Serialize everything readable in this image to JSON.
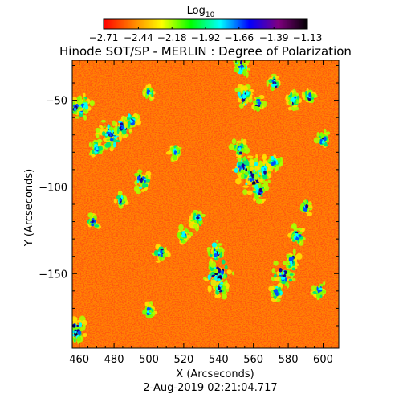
{
  "chart_data": {
    "type": "heatmap",
    "title": "Hinode SOT/SP - MERLIN : Degree of Polarization",
    "subtitle": "2-Aug-2019 02:21:04.717",
    "xlabel": "X (Arcseconds)",
    "ylabel": "Y (Arcseconds)",
    "xlim": [
      456,
      609
    ],
    "ylim": [
      -193,
      -27
    ],
    "x_ticks": [
      {
        "value": 460,
        "label": "460"
      },
      {
        "value": 480,
        "label": "480"
      },
      {
        "value": 500,
        "label": "500"
      },
      {
        "value": 520,
        "label": "520"
      },
      {
        "value": 540,
        "label": "540"
      },
      {
        "value": 560,
        "label": "560"
      },
      {
        "value": 580,
        "label": "580"
      },
      {
        "value": 600,
        "label": "600"
      }
    ],
    "y_ticks": [
      {
        "value": -50,
        "label": "−50"
      },
      {
        "value": -100,
        "label": "−100"
      },
      {
        "value": -150,
        "label": "−150"
      }
    ],
    "colorbar": {
      "title_base": "Log",
      "title_sub": "10",
      "range": [
        -2.71,
        -1.13
      ],
      "ticks": [
        {
          "value": -2.71,
          "label": "−2.71"
        },
        {
          "value": -2.44,
          "label": "−2.44"
        },
        {
          "value": -2.18,
          "label": "−2.18"
        },
        {
          "value": -1.92,
          "label": "−1.92"
        },
        {
          "value": -1.66,
          "label": "−1.66"
        },
        {
          "value": -1.39,
          "label": "−1.39"
        },
        {
          "value": -1.13,
          "label": "−1.13"
        }
      ],
      "colors": [
        "#ff0000",
        "#ff8000",
        "#ffff00",
        "#00ff00",
        "#00ffff",
        "#0000ff",
        "#800080",
        "#000000"
      ]
    },
    "field_background": "#ff5a0a",
    "features": [
      {
        "x": 478,
        "y": -70,
        "size": 2.2,
        "level": 0.95
      },
      {
        "x": 485,
        "y": -66,
        "size": 1.4,
        "level": 0.8
      },
      {
        "x": 490,
        "y": -62,
        "size": 1.2,
        "level": 0.7
      },
      {
        "x": 462,
        "y": -53,
        "size": 1.6,
        "level": 0.8
      },
      {
        "x": 458,
        "y": -55,
        "size": 1.2,
        "level": 0.7
      },
      {
        "x": 496,
        "y": -96,
        "size": 1.6,
        "level": 0.85
      },
      {
        "x": 484,
        "y": -108,
        "size": 1.0,
        "level": 0.75
      },
      {
        "x": 470,
        "y": -78,
        "size": 1.2,
        "level": 0.65
      },
      {
        "x": 560,
        "y": -94,
        "size": 2.6,
        "level": 0.95
      },
      {
        "x": 554,
        "y": -88,
        "size": 1.8,
        "level": 0.8
      },
      {
        "x": 566,
        "y": -90,
        "size": 1.6,
        "level": 0.75
      },
      {
        "x": 563,
        "y": -102,
        "size": 1.5,
        "level": 0.85
      },
      {
        "x": 552,
        "y": -78,
        "size": 1.3,
        "level": 0.6
      },
      {
        "x": 572,
        "y": -85,
        "size": 1.2,
        "level": 0.6
      },
      {
        "x": 555,
        "y": -48,
        "size": 1.5,
        "level": 0.75
      },
      {
        "x": 563,
        "y": -52,
        "size": 1.2,
        "level": 0.7
      },
      {
        "x": 583,
        "y": -50,
        "size": 1.2,
        "level": 0.7
      },
      {
        "x": 592,
        "y": -48,
        "size": 1.0,
        "level": 0.65
      },
      {
        "x": 572,
        "y": -40,
        "size": 1.2,
        "level": 0.65
      },
      {
        "x": 553,
        "y": -31,
        "size": 1.4,
        "level": 0.75
      },
      {
        "x": 540,
        "y": -150,
        "size": 2.4,
        "level": 0.95
      },
      {
        "x": 538,
        "y": -138,
        "size": 1.5,
        "level": 0.75
      },
      {
        "x": 541,
        "y": -158,
        "size": 1.3,
        "level": 0.7
      },
      {
        "x": 577,
        "y": -151,
        "size": 2.0,
        "level": 0.85
      },
      {
        "x": 582,
        "y": -143,
        "size": 1.4,
        "level": 0.75
      },
      {
        "x": 573,
        "y": -160,
        "size": 1.2,
        "level": 0.7
      },
      {
        "x": 585,
        "y": -128,
        "size": 1.3,
        "level": 0.65
      },
      {
        "x": 458,
        "y": -183,
        "size": 1.8,
        "level": 0.85
      },
      {
        "x": 507,
        "y": -138,
        "size": 1.2,
        "level": 0.65
      },
      {
        "x": 528,
        "y": -118,
        "size": 1.3,
        "level": 0.6
      },
      {
        "x": 520,
        "y": -128,
        "size": 1.1,
        "level": 0.55
      },
      {
        "x": 590,
        "y": -112,
        "size": 1.1,
        "level": 0.6
      },
      {
        "x": 598,
        "y": -160,
        "size": 1.2,
        "level": 0.6
      },
      {
        "x": 500,
        "y": -172,
        "size": 1.1,
        "level": 0.6
      },
      {
        "x": 600,
        "y": -73,
        "size": 1.2,
        "level": 0.6
      },
      {
        "x": 515,
        "y": -80,
        "size": 1.0,
        "level": 0.55
      },
      {
        "x": 468,
        "y": -120,
        "size": 1.1,
        "level": 0.55
      },
      {
        "x": 500,
        "y": -45,
        "size": 1.0,
        "level": 0.5
      }
    ]
  }
}
